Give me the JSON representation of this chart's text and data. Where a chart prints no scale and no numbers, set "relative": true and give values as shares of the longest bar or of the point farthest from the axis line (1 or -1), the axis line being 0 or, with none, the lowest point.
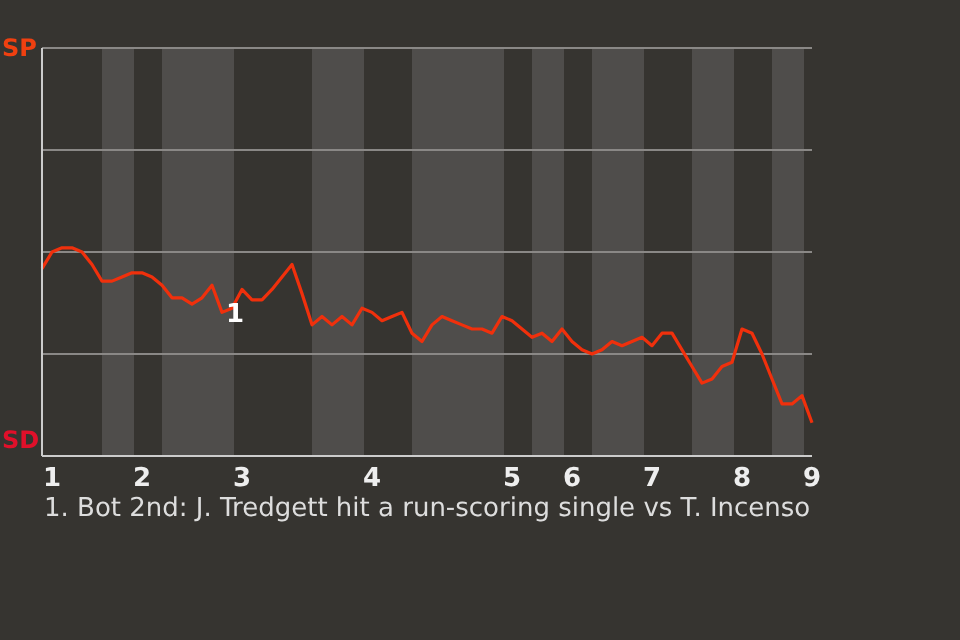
{
  "chart_data": {
    "type": "line",
    "relative": true,
    "categories": [
      null,
      "1",
      null,
      null,
      null,
      null,
      null,
      null,
      null,
      null,
      "2",
      null,
      null,
      null,
      null,
      null,
      null,
      null,
      null,
      null,
      "3",
      null,
      null,
      null,
      null,
      null,
      null,
      null,
      null,
      null,
      null,
      null,
      null,
      "4",
      null,
      null,
      null,
      null,
      null,
      null,
      null,
      null,
      null,
      null,
      null,
      null,
      null,
      "5",
      null,
      null,
      null,
      null,
      null,
      "6",
      null,
      null,
      null,
      null,
      null,
      null,
      null,
      "7",
      null,
      null,
      null,
      null,
      null,
      null,
      null,
      null,
      "8",
      null,
      null,
      null,
      null,
      null,
      null,
      "9"
    ],
    "series": [
      {
        "color": "#f0300c",
        "values": [
          0.9,
          0.98,
          1,
          1,
          0.98,
          0.92,
          0.84,
          0.84,
          0.86,
          0.88,
          0.88,
          0.86,
          0.82,
          0.76,
          0.76,
          0.73,
          0.76,
          0.82,
          0.69,
          0.71,
          0.8,
          0.75,
          0.75,
          0.8,
          0.86,
          0.92,
          0.78,
          0.63,
          0.67,
          0.63,
          0.67,
          0.63,
          0.71,
          0.69,
          0.65,
          0.67,
          0.69,
          0.59,
          0.55,
          0.63,
          0.67,
          0.65,
          0.63,
          0.61,
          0.61,
          0.59,
          0.67,
          0.65,
          0.61,
          0.57,
          0.59,
          0.55,
          0.61,
          0.55,
          0.51,
          0.49,
          0.51,
          0.55,
          0.53,
          0.55,
          0.57,
          0.53,
          0.59,
          0.59,
          0.51,
          0.43,
          0.35,
          0.37,
          0.43,
          0.45,
          0.61,
          0.59,
          0.49,
          0.37,
          0.25,
          0.25,
          0.29,
          0.16
        ]
      }
    ],
    "ref_lines": [
      {
        "axis": "y",
        "value": 0.49,
        "color": "#8a8886"
      },
      {
        "axis": "y",
        "value": 0.98,
        "color": "#8a8886"
      },
      {
        "axis": "y",
        "value": 1.47,
        "color": "#8a8886"
      },
      {
        "axis": "y",
        "value": 1.96,
        "color": "#8a8886"
      }
    ],
    "annotations": [
      {
        "text": "1",
        "y": 0.69
      },
      "SP",
      "SD",
      "1. Bot 2nd: J. Tredgett hit a run-scoring single vs T. Incenso"
    ]
  }
}
